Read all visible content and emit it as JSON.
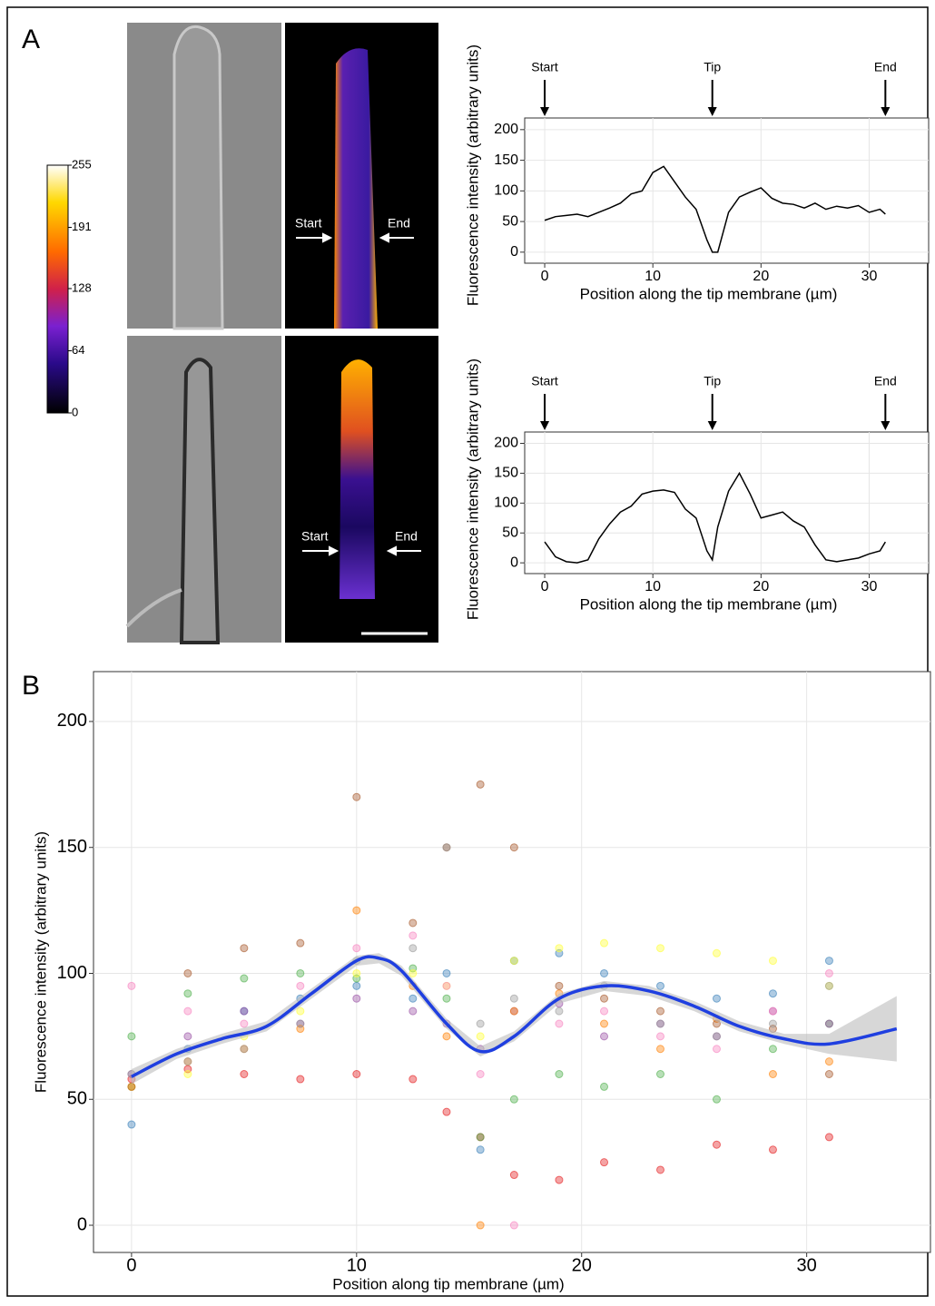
{
  "figure": {
    "panel_labels": [
      "A",
      "B"
    ],
    "colorbar_ticks": [
      255,
      191,
      128,
      64,
      0
    ],
    "image_annotations": [
      {
        "start": "Start",
        "end": "End"
      },
      {
        "start": "Start",
        "end": "End"
      }
    ]
  },
  "chart_data": [
    {
      "type": "line",
      "xlabel": "Position along the tip membrane (µm)",
      "ylabel": "Fluorescence intensity (arbitrary units)",
      "xlim": [
        -1.85,
        35.5
      ],
      "ylim": [
        -18,
        219
      ],
      "xticks": [
        0,
        10,
        20,
        30
      ],
      "yticks": [
        0,
        50,
        100,
        150,
        200
      ],
      "grid": true,
      "annotations": [
        {
          "text": "Start",
          "x": 0
        },
        {
          "text": "Tip",
          "x": 15.5
        },
        {
          "text": "End",
          "x": 31.5
        }
      ],
      "x": [
        0,
        1,
        2,
        3,
        4,
        5,
        6,
        7,
        8,
        9,
        10,
        11,
        12,
        13,
        14,
        15,
        15.5,
        16,
        17,
        18,
        19,
        20,
        21,
        22,
        23,
        24,
        25,
        26,
        27,
        28,
        29,
        30,
        31,
        31.5
      ],
      "series": [
        {
          "name": null,
          "color": "#000000",
          "values": [
            52,
            58,
            60,
            62,
            58,
            65,
            72,
            80,
            95,
            100,
            130,
            140,
            115,
            90,
            70,
            20,
            0,
            0,
            65,
            90,
            98,
            105,
            88,
            80,
            78,
            72,
            80,
            70,
            75,
            72,
            76,
            65,
            70,
            62
          ]
        }
      ]
    },
    {
      "type": "line",
      "xlabel": "Position along the tip membrane (µm)",
      "ylabel": "Fluorescence intensity (arbitrary units)",
      "xlim": [
        -1.85,
        35.5
      ],
      "ylim": [
        -18,
        219
      ],
      "xticks": [
        0,
        10,
        20,
        30
      ],
      "yticks": [
        0,
        50,
        100,
        150,
        200
      ],
      "grid": true,
      "annotations": [
        {
          "text": "Start",
          "x": 0
        },
        {
          "text": "Tip",
          "x": 15.5
        },
        {
          "text": "End",
          "x": 31.5
        }
      ],
      "x": [
        0,
        1,
        2,
        3,
        4,
        5,
        6,
        7,
        8,
        9,
        10,
        11,
        12,
        13,
        14,
        15,
        15.5,
        16,
        17,
        18,
        19,
        20,
        21,
        22,
        23,
        24,
        25,
        26,
        27,
        28,
        29,
        30,
        31,
        31.5
      ],
      "series": [
        {
          "name": null,
          "color": "#000000",
          "values": [
            35,
            10,
            2,
            0,
            5,
            40,
            65,
            85,
            95,
            115,
            120,
            122,
            118,
            90,
            75,
            20,
            5,
            60,
            120,
            150,
            115,
            75,
            80,
            85,
            70,
            60,
            30,
            5,
            2,
            5,
            8,
            15,
            20,
            35
          ]
        }
      ]
    },
    {
      "type": "scatter",
      "xlabel": "Position along tip membrane (µm)",
      "ylabel": "Fluorescence intensity (arbitrary units)",
      "xlim": [
        -1.69,
        35.5
      ],
      "ylim": [
        -10.8,
        219.8
      ],
      "xticks": [
        0,
        10,
        20,
        30
      ],
      "yticks": [
        0,
        50,
        100,
        150,
        200
      ],
      "grid": true,
      "x": [
        0,
        2.5,
        5,
        7.5,
        10,
        12.5,
        14,
        15.5,
        17,
        19,
        21,
        23.5,
        26,
        28.5,
        31
      ],
      "series": [
        {
          "name": null,
          "color": "#e41a1c",
          "values": [
            58,
            62,
            60,
            58,
            60,
            58,
            45,
            35,
            20,
            18,
            25,
            22,
            32,
            30,
            35
          ]
        },
        {
          "name": null,
          "color": "#377eb8",
          "values": [
            40,
            70,
            85,
            90,
            95,
            90,
            100,
            30,
            105,
            108,
            100,
            95,
            90,
            92,
            105
          ]
        },
        {
          "name": null,
          "color": "#4daf4a",
          "values": [
            75,
            92,
            98,
            100,
            98,
            102,
            90,
            35,
            50,
            60,
            55,
            60,
            50,
            70,
            80
          ]
        },
        {
          "name": null,
          "color": "#984ea3",
          "values": [
            60,
            75,
            85,
            80,
            90,
            85,
            80,
            70,
            85,
            88,
            75,
            80,
            75,
            85,
            80
          ]
        },
        {
          "name": null,
          "color": "#ff7f00",
          "values": [
            55,
            65,
            70,
            78,
            125,
            95,
            75,
            0,
            85,
            92,
            80,
            70,
            82,
            60,
            65
          ]
        },
        {
          "name": null,
          "color": "#ffff33",
          "values": [
            55,
            60,
            75,
            85,
            100,
            100,
            95,
            75,
            105,
            110,
            112,
            110,
            108,
            105,
            95
          ]
        },
        {
          "name": null,
          "color": "#a65628",
          "values": [
            55,
            100,
            110,
            112,
            170,
            120,
            150,
            175,
            150,
            95,
            90,
            85,
            80,
            78,
            60
          ]
        },
        {
          "name": null,
          "color": "#f781bf",
          "values": [
            95,
            85,
            80,
            95,
            110,
            115,
            95,
            60,
            0,
            80,
            85,
            75,
            70,
            85,
            100
          ]
        },
        {
          "name": null,
          "color": "#999999",
          "values": [
            60,
            65,
            70,
            80,
            105,
            110,
            150,
            80,
            90,
            85,
            95,
            80,
            75,
            80,
            95
          ]
        }
      ],
      "smooth": {
        "color": "#1f3fe0",
        "band_color": "#bdbdbd",
        "x": [
          0,
          2,
          4,
          6,
          8,
          10,
          11,
          12,
          14,
          15.5,
          17,
          19,
          21,
          23,
          25,
          27,
          29,
          31,
          34
        ],
        "values": [
          59,
          68,
          74,
          79,
          92,
          105,
          106,
          101,
          80,
          69,
          75,
          90,
          95,
          93,
          87,
          79,
          74,
          72,
          78
        ],
        "lower": [
          56,
          66,
          72,
          77,
          90,
          103,
          104,
          99,
          78,
          67,
          73,
          88,
          93,
          91,
          85,
          77,
          72,
          68,
          65
        ],
        "upper": [
          62,
          70,
          76,
          81,
          94,
          107,
          108,
          103,
          82,
          71,
          77,
          92,
          97,
          95,
          89,
          81,
          76,
          76,
          91
        ]
      }
    }
  ]
}
